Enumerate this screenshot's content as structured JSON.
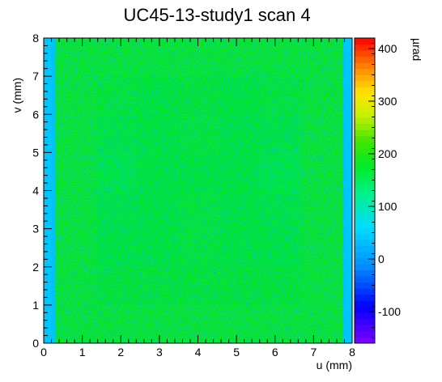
{
  "chart_data": {
    "type": "heatmap",
    "title": "UC45-13-study1 scan 4",
    "xlabel": "u (mm)",
    "ylabel": "v (mm)",
    "zlabel": "µrad",
    "xlim": [
      0,
      8
    ],
    "ylim": [
      0,
      8
    ],
    "zlim": [
      -160,
      420
    ],
    "x_ticks": [
      "0",
      "1",
      "2",
      "3",
      "4",
      "5",
      "6",
      "7",
      "8"
    ],
    "y_ticks": [
      "0",
      "1",
      "2",
      "3",
      "4",
      "5",
      "6",
      "7",
      "8"
    ],
    "z_ticks": [
      "-100",
      "0",
      "100",
      "200",
      "300",
      "400"
    ],
    "z_tick_values": [
      -100,
      0,
      100,
      200,
      300,
      400
    ],
    "background_level": 185,
    "edge_level": 40,
    "rows_v": [
      {
        "v": 7.5,
        "values": [
          40,
          185,
          185,
          185,
          185,
          185,
          185,
          185,
          40
        ]
      },
      {
        "v": 6.5,
        "values": [
          40,
          185,
          180,
          178,
          182,
          178,
          180,
          185,
          40
        ]
      },
      {
        "v": 5.5,
        "values": [
          40,
          185,
          172,
          176,
          180,
          176,
          172,
          185,
          40
        ]
      },
      {
        "v": 4.5,
        "values": [
          40,
          185,
          170,
          175,
          178,
          175,
          170,
          185,
          40
        ]
      },
      {
        "v": 3.5,
        "values": [
          40,
          185,
          172,
          176,
          180,
          176,
          172,
          185,
          40
        ]
      },
      {
        "v": 2.5,
        "values": [
          40,
          185,
          175,
          178,
          180,
          178,
          175,
          185,
          40
        ]
      },
      {
        "v": 1.5,
        "values": [
          40,
          185,
          182,
          182,
          182,
          182,
          182,
          185,
          40
        ]
      },
      {
        "v": 0.5,
        "values": [
          40,
          185,
          185,
          185,
          185,
          185,
          185,
          185,
          40
        ]
      }
    ]
  }
}
